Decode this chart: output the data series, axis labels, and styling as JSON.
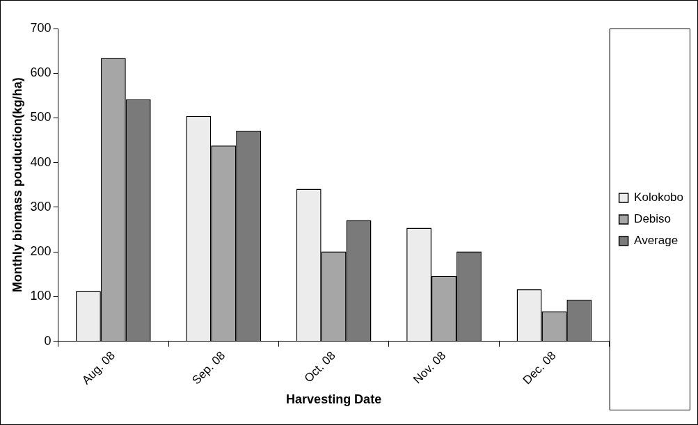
{
  "chart_data": {
    "type": "bar",
    "xlabel": "Harvesting Date",
    "ylabel": "Monthly biomass pouduction(kg/ha)",
    "categories": [
      "Aug. 08",
      "Sep. 08",
      "Oct. 08",
      "Nov. 08",
      "Dec. 08"
    ],
    "series": [
      {
        "name": "Kolokobo",
        "color": "#ececec",
        "values": [
          112,
          504,
          341,
          254,
          116
        ]
      },
      {
        "name": "Debiso",
        "color": "#a6a6a6",
        "values": [
          634,
          438,
          201,
          146,
          67
        ]
      },
      {
        "name": "Average",
        "color": "#7a7a7a",
        "values": [
          541,
          471,
          271,
          201,
          93
        ]
      }
    ],
    "ylim": [
      0,
      700
    ],
    "yticks": [
      0,
      100,
      200,
      300,
      400,
      500,
      600,
      700
    ],
    "grid": false,
    "legend": "right"
  }
}
